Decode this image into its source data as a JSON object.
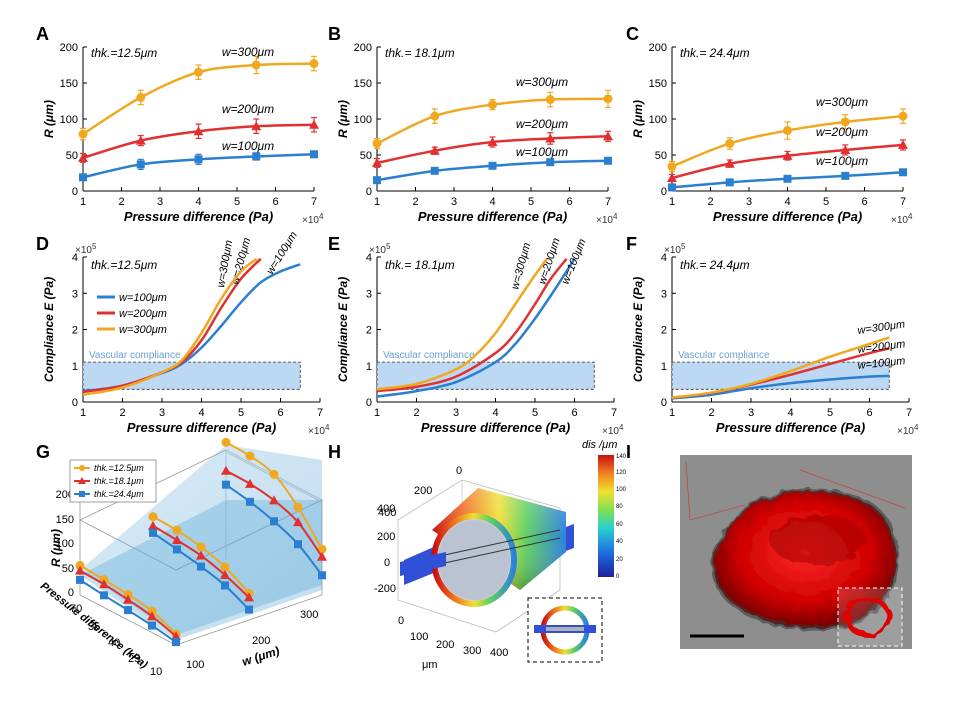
{
  "figure": {
    "panel_letters": [
      "A",
      "B",
      "C",
      "D",
      "E",
      "F",
      "G",
      "H",
      "I"
    ]
  },
  "chart_data": [
    {
      "panel": "A",
      "type": "line",
      "x": [
        1,
        2.5,
        4,
        5.5,
        7
      ],
      "x_tick_labels": [
        "1",
        "2",
        "3",
        "4",
        "5",
        "6",
        "7"
      ],
      "x_exponent": "×10",
      "x_exponent_power": "4",
      "xlabel": "Pressure difference (Pa)",
      "ylabel": "R (μm)",
      "ylim": [
        0,
        200
      ],
      "xlim": [
        1,
        7
      ],
      "y_tick_labels": [
        "0",
        "50",
        "100",
        "150",
        "200"
      ],
      "annotation": "thk.=12.5μm",
      "series": [
        {
          "name": "w=300μm",
          "values": [
            79,
            130,
            165,
            175,
            177
          ],
          "error": [
            8,
            10,
            10,
            12,
            10
          ],
          "color": "#f0a820",
          "marker": "circle"
        },
        {
          "name": "w=200μm",
          "values": [
            46,
            70,
            83,
            90,
            92
          ],
          "error": [
            6,
            7,
            10,
            10,
            10
          ],
          "color": "#e23030",
          "marker": "triangle"
        },
        {
          "name": "w=100μm",
          "values": [
            19,
            37,
            44,
            48,
            51
          ],
          "error": [
            4,
            7,
            7,
            5,
            4
          ],
          "color": "#2a7fd0",
          "marker": "square"
        }
      ]
    },
    {
      "panel": "B",
      "type": "line",
      "x": [
        1,
        2.5,
        4,
        5.5,
        7
      ],
      "x_tick_labels": [
        "1",
        "2",
        "3",
        "4",
        "5",
        "6",
        "7"
      ],
      "x_exponent": "×10",
      "x_exponent_power": "4",
      "xlabel": "Pressure difference (Pa)",
      "ylabel": "R (μm)",
      "ylim": [
        0,
        200
      ],
      "xlim": [
        1,
        7
      ],
      "y_tick_labels": [
        "0",
        "50",
        "100",
        "150",
        "200"
      ],
      "annotation": "thk.= 18.1μm",
      "series": [
        {
          "name": "w=300μm",
          "values": [
            66,
            104,
            120,
            127,
            128
          ],
          "error": [
            7,
            10,
            7,
            10,
            12
          ],
          "color": "#f0a820",
          "marker": "circle"
        },
        {
          "name": "w=200μm",
          "values": [
            39,
            56,
            68,
            73,
            76
          ],
          "error": [
            6,
            5,
            7,
            8,
            7
          ],
          "color": "#e23030",
          "marker": "triangle"
        },
        {
          "name": "w=100μm",
          "values": [
            15,
            28,
            35,
            40,
            42
          ],
          "error": [
            3,
            4,
            3,
            4,
            4
          ],
          "color": "#2a7fd0",
          "marker": "square"
        }
      ]
    },
    {
      "panel": "C",
      "type": "line",
      "x": [
        1,
        2.5,
        4,
        5.5,
        7
      ],
      "x_tick_labels": [
        "1",
        "2",
        "3",
        "4",
        "5",
        "6",
        "7"
      ],
      "x_exponent": "×10",
      "x_exponent_power": "4",
      "xlabel": "Pressure difference (Pa)",
      "ylabel": "R (μm)",
      "ylim": [
        0,
        200
      ],
      "xlim": [
        1,
        7
      ],
      "y_tick_labels": [
        "0",
        "50",
        "100",
        "150",
        "200"
      ],
      "annotation": "thk.= 24.4μm",
      "series": [
        {
          "name": "w=300μm",
          "values": [
            34,
            66,
            84,
            96,
            104
          ],
          "error": [
            7,
            8,
            12,
            10,
            10
          ],
          "color": "#f0a820",
          "marker": "circle"
        },
        {
          "name": "w=200μm",
          "values": [
            18,
            38,
            49,
            57,
            64
          ],
          "error": [
            5,
            5,
            6,
            7,
            7
          ],
          "color": "#e23030",
          "marker": "triangle"
        },
        {
          "name": "w=100μm",
          "values": [
            5,
            12,
            17,
            21,
            26
          ],
          "error": [
            2,
            3,
            3,
            3,
            3
          ],
          "color": "#2a7fd0",
          "marker": "square"
        }
      ]
    },
    {
      "panel": "D",
      "type": "line",
      "xlabel": "Pressure difference (Pa)",
      "ylabel": "Compliance E (Pa)",
      "xlim": [
        1,
        7
      ],
      "ylim": [
        0,
        4
      ],
      "x_tick_labels": [
        "1",
        "2",
        "3",
        "4",
        "5",
        "6",
        "7"
      ],
      "y_tick_labels": [
        "0",
        "1",
        "2",
        "3",
        "4"
      ],
      "x_exponent": "×10",
      "x_exponent_power": "4",
      "y_exponent": "×10",
      "y_exponent_power": "5",
      "annotation": "thk.=12.5μm",
      "band_label": "Vascular compliance",
      "band_range": [
        0.35,
        1.1
      ],
      "band_x_range": [
        1,
        6.5
      ],
      "legend": [
        "w=100μm",
        "w=200μm",
        "w=300μm"
      ],
      "legend_position": "left",
      "series": [
        {
          "name": "w=100μm",
          "label": "w=100μm",
          "color": "#2a7fd0",
          "x": [
            1,
            2,
            3,
            3.5,
            4,
            4.5,
            5,
            5.5,
            6,
            6.5
          ],
          "values": [
            0.3,
            0.45,
            0.8,
            1.05,
            1.5,
            2.1,
            2.75,
            3.3,
            3.6,
            3.8
          ]
        },
        {
          "name": "w=200μm",
          "label": "w=200μm",
          "color": "#e23030",
          "x": [
            1,
            2,
            3,
            3.5,
            4,
            4.5,
            5,
            5.5
          ],
          "values": [
            0.28,
            0.45,
            0.82,
            1.1,
            1.7,
            2.6,
            3.4,
            3.95
          ]
        },
        {
          "name": "w=300μm",
          "label": "w=300μm",
          "color": "#f0a820",
          "x": [
            1,
            2,
            3,
            3.5,
            4,
            4.5,
            5,
            5.4
          ],
          "values": [
            0.2,
            0.4,
            0.82,
            1.15,
            1.9,
            2.85,
            3.6,
            3.95
          ]
        }
      ]
    },
    {
      "panel": "E",
      "type": "line",
      "xlabel": "Pressure difference (Pa)",
      "ylabel": "Compliance E (Pa)",
      "xlim": [
        1,
        7
      ],
      "ylim": [
        0,
        4
      ],
      "x_tick_labels": [
        "1",
        "2",
        "3",
        "4",
        "5",
        "6",
        "7"
      ],
      "y_tick_labels": [
        "0",
        "1",
        "2",
        "3",
        "4"
      ],
      "x_exponent": "×10",
      "x_exponent_power": "4",
      "y_exponent": "×10",
      "y_exponent_power": "5",
      "annotation": "thk.= 18.1μm",
      "band_label": "Vascular compliance",
      "band_range": [
        0.35,
        1.1
      ],
      "band_x_range": [
        1,
        6.5
      ],
      "series": [
        {
          "name": "w=100μm",
          "label": "w=100μm",
          "color": "#2a7fd0",
          "x": [
            1,
            2,
            3,
            4,
            4.5,
            5,
            5.5,
            6
          ],
          "values": [
            0.15,
            0.3,
            0.55,
            1.1,
            1.6,
            2.3,
            3.1,
            3.95
          ]
        },
        {
          "name": "w=200μm",
          "label": "w=200μm",
          "color": "#e23030",
          "x": [
            1,
            2,
            3,
            4,
            4.5,
            5,
            5.4,
            5.8
          ],
          "values": [
            0.3,
            0.42,
            0.7,
            1.35,
            1.9,
            2.7,
            3.4,
            3.95
          ]
        },
        {
          "name": "w=300μm",
          "label": "w=300μm",
          "color": "#f0a820",
          "x": [
            1,
            2,
            3,
            3.5,
            4,
            4.5,
            5,
            5.3
          ],
          "values": [
            0.35,
            0.5,
            0.9,
            1.3,
            1.9,
            2.7,
            3.5,
            3.95
          ]
        }
      ]
    },
    {
      "panel": "F",
      "type": "line",
      "xlabel": "Pressure difference (Pa)",
      "ylabel": "Compliance E (Pa)",
      "xlim": [
        1,
        7
      ],
      "ylim": [
        0,
        4
      ],
      "x_tick_labels": [
        "1",
        "2",
        "3",
        "4",
        "5",
        "6",
        "7"
      ],
      "y_tick_labels": [
        "0",
        "1",
        "2",
        "3",
        "4"
      ],
      "x_exponent": "×10",
      "x_exponent_power": "4",
      "y_exponent": "×10",
      "y_exponent_power": "5",
      "annotation": "thk.= 24.4μm",
      "band_label": "Vascular compliance",
      "band_range": [
        0.35,
        1.1
      ],
      "band_x_range": [
        1,
        6.5
      ],
      "series": [
        {
          "name": "w=100μm",
          "label": "w=100μm",
          "color": "#2a7fd0",
          "x": [
            1,
            2,
            3,
            4,
            5,
            6,
            6.5
          ],
          "values": [
            0.1,
            0.2,
            0.38,
            0.52,
            0.62,
            0.7,
            0.72
          ]
        },
        {
          "name": "w=200μm",
          "label": "w=200μm",
          "color": "#e23030",
          "x": [
            1,
            2,
            3,
            4,
            5,
            6,
            6.5
          ],
          "values": [
            0.12,
            0.25,
            0.48,
            0.75,
            1.05,
            1.35,
            1.48
          ]
        },
        {
          "name": "w=300μm",
          "label": "w=300μm",
          "color": "#f0a820",
          "x": [
            1,
            2,
            3,
            4,
            5,
            6,
            6.5
          ],
          "values": [
            0.12,
            0.26,
            0.5,
            0.85,
            1.25,
            1.6,
            1.78
          ]
        }
      ]
    },
    {
      "panel": "G",
      "type": "line",
      "xlabel": "w (μm)",
      "ylabel": "R (μm)",
      "zlabel": "Pressure difference (kPa)",
      "x_tick_labels": [
        "100",
        "200",
        "300"
      ],
      "y_tick_labels": [
        "0",
        "50",
        "100",
        "150",
        "200"
      ],
      "z_tick_labels": [
        "10",
        "25",
        "40",
        "55",
        "70"
      ],
      "w": [
        100,
        200,
        300
      ],
      "pressure_kpa": [
        10,
        25,
        40,
        55,
        70
      ],
      "series": [
        {
          "name": "thk.=12.5μm",
          "color": "#f0a820",
          "marker": "circle",
          "R": [
            [
              19,
              37,
              44,
              48,
              51
            ],
            [
              46,
              70,
              83,
              90,
              92
            ],
            [
              79,
              130,
              165,
              175,
              177
            ]
          ]
        },
        {
          "name": "thk.=18.1μm",
          "color": "#e23030",
          "marker": "triangle",
          "R": [
            [
              15,
              28,
              35,
              40,
              42
            ],
            [
              39,
              56,
              68,
              73,
              76
            ],
            [
              66,
              104,
              120,
              127,
              128
            ]
          ]
        },
        {
          "name": "thk.=24.4μm",
          "color": "#2a7fd0",
          "marker": "square",
          "R": [
            [
              5,
              12,
              17,
              21,
              26
            ],
            [
              18,
              38,
              49,
              57,
              64
            ],
            [
              34,
              66,
              84,
              96,
              104
            ]
          ]
        }
      ]
    },
    {
      "panel": "H",
      "type": "heatmap",
      "colorbar_title": "dis /μm",
      "colorbar_ticks": [
        "0",
        "20",
        "40",
        "60",
        "80",
        "100",
        "120",
        "140"
      ],
      "axis_ticks_vertical": [
        "0",
        "200",
        "400"
      ],
      "axis_ticks_left": [
        "-200",
        "0",
        "200",
        "400"
      ],
      "axis_ticks_bottom": [
        "0",
        "100",
        "200",
        "300",
        "400"
      ],
      "unit_label": "μm"
    }
  ]
}
